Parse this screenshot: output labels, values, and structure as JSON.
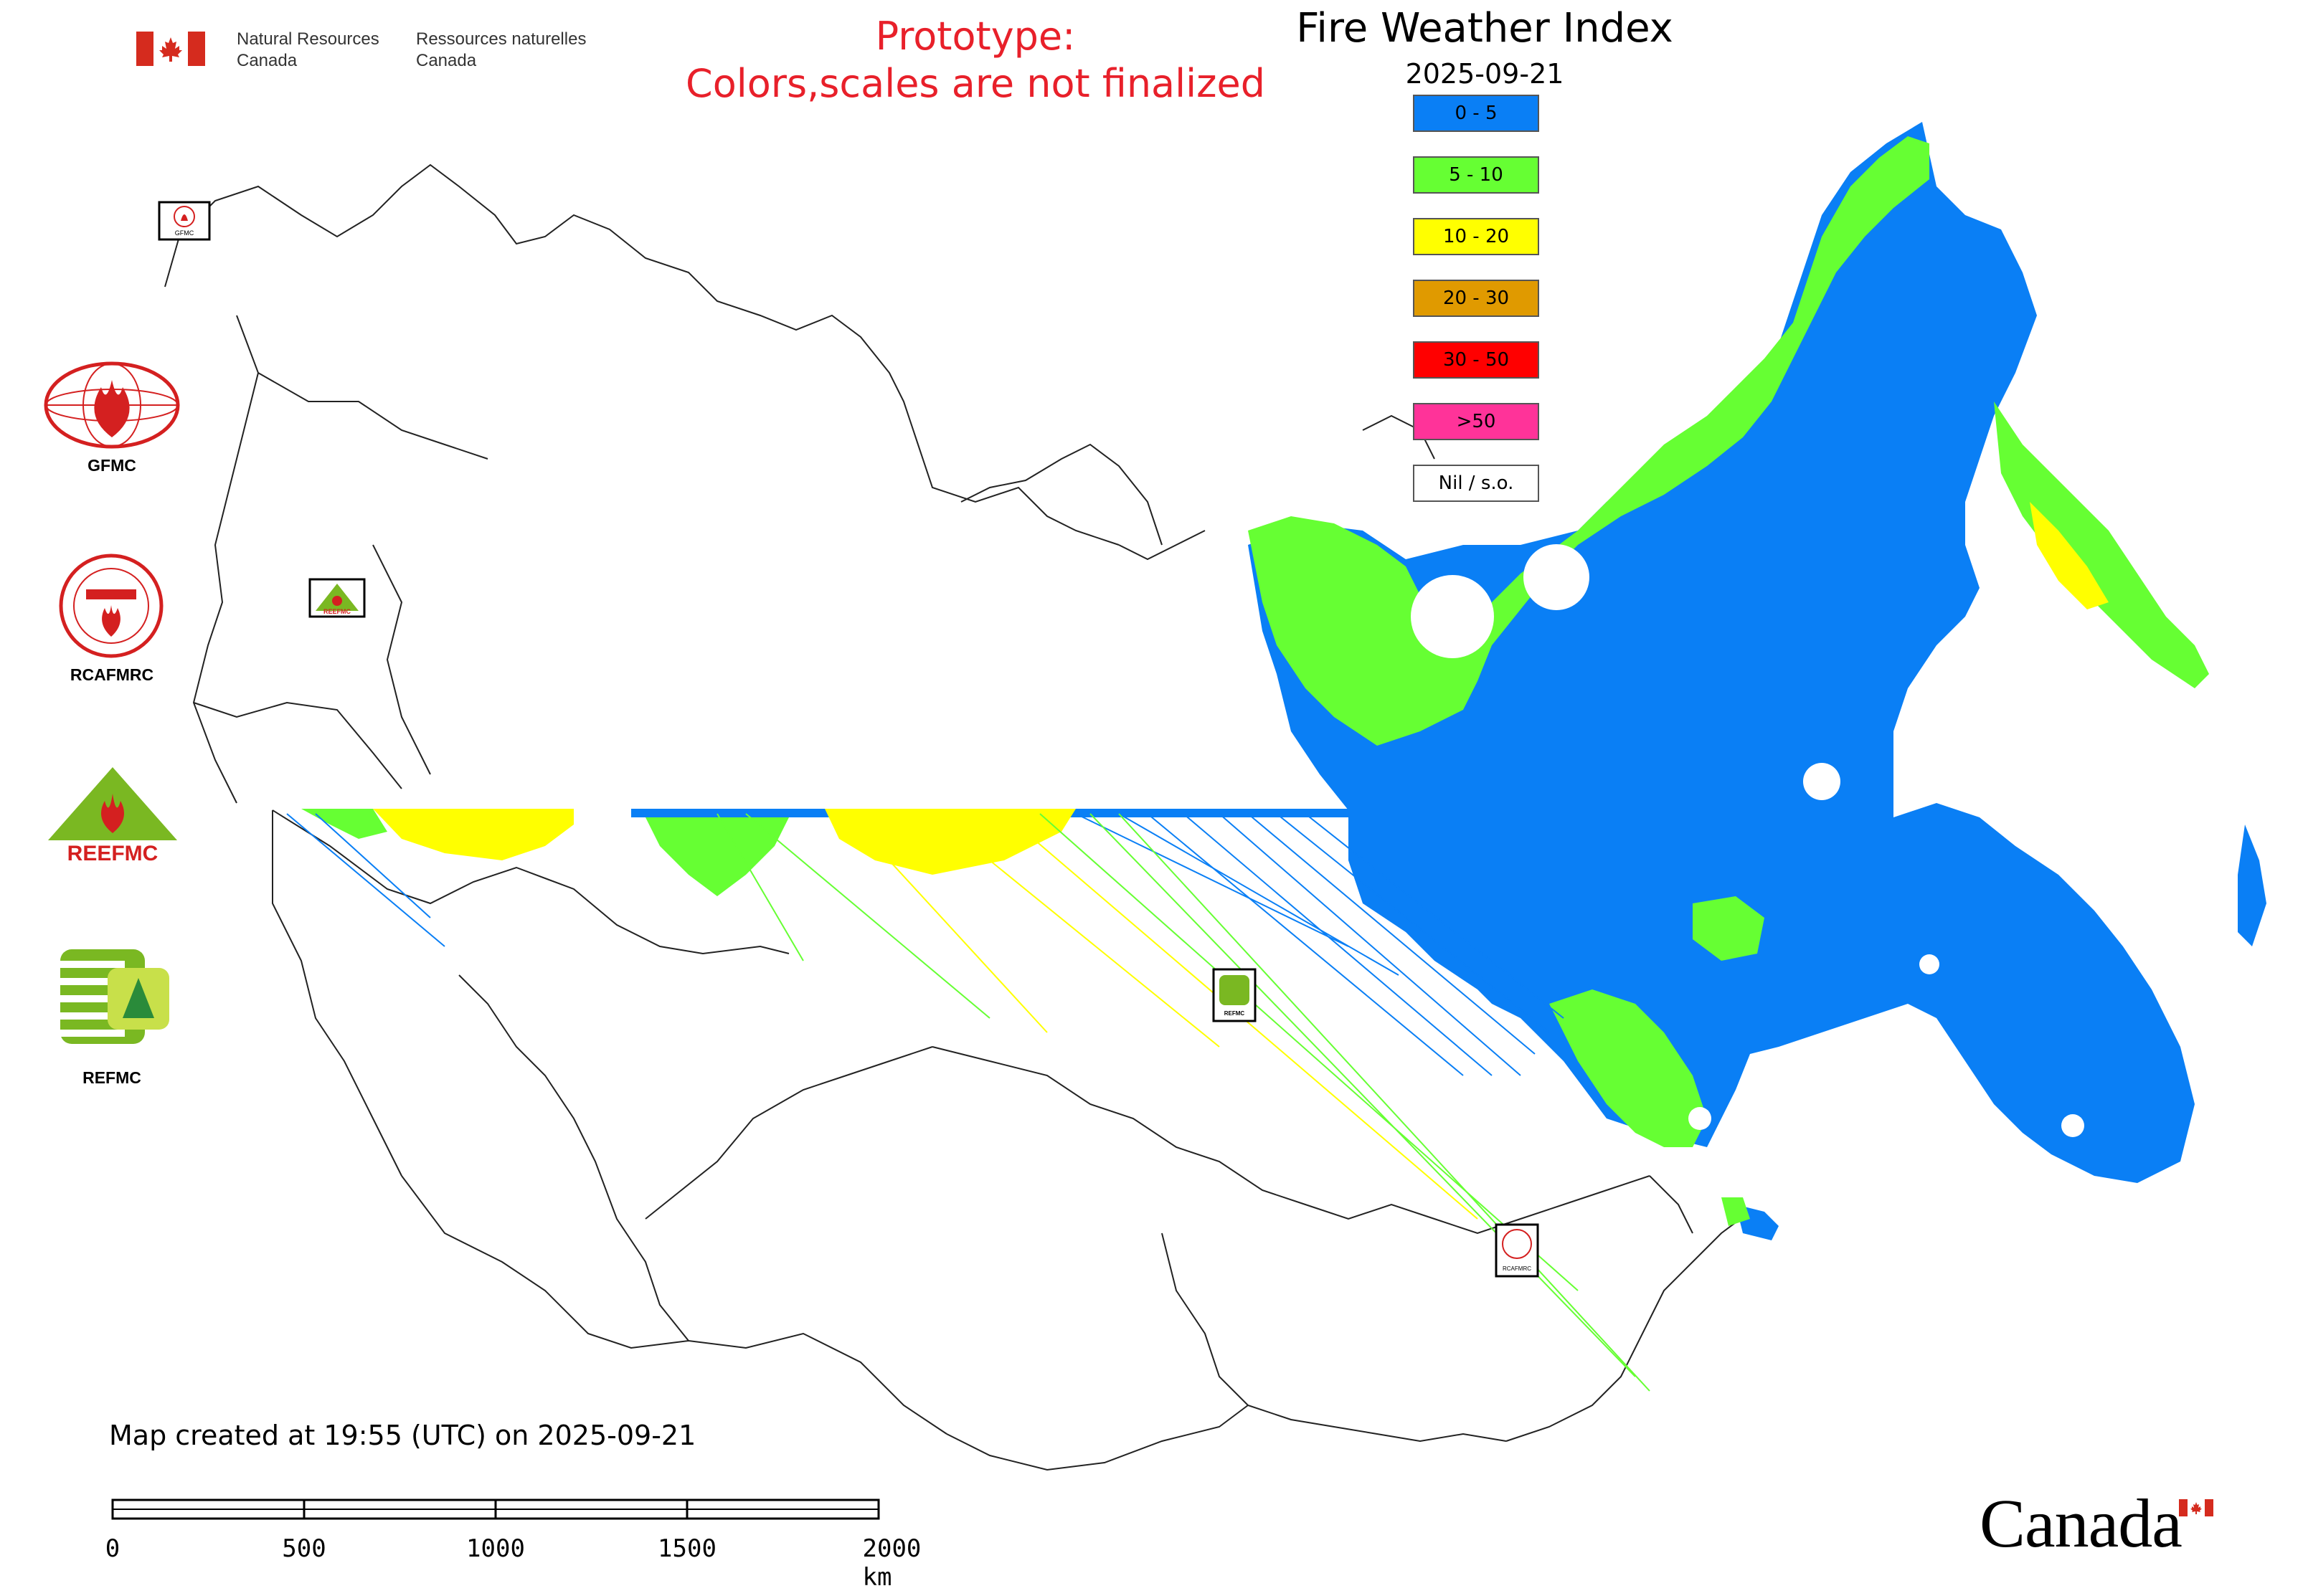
{
  "header": {
    "org_en_line1": "Natural Resources",
    "org_en_line2": "Canada",
    "org_fr_line1": "Ressources naturelles",
    "org_fr_line2": "Canada",
    "prototype_line1": "Prototype:",
    "prototype_line2": "Colors,scales are not finalized",
    "map_title": "Fire Weather Index",
    "map_date": "2025-09-21"
  },
  "legend": [
    {
      "label": "0 - 5",
      "color": "#0a7ff5"
    },
    {
      "label": "5 - 10",
      "color": "#66ff33"
    },
    {
      "label": "10 - 20",
      "color": "#ffff00"
    },
    {
      "label": "20 - 30",
      "color": "#e09a00"
    },
    {
      "label": "30 - 50",
      "color": "#ff0000"
    },
    {
      "label": ">50",
      "color": "#ff3399"
    },
    {
      "label": "Nil / s.o.",
      "color": "#ffffff"
    }
  ],
  "side_logos": [
    {
      "label": "GFMC",
      "icon": "gfmc-logo-icon"
    },
    {
      "label": "RCAFMRC",
      "icon": "rcafmrc-logo-icon"
    },
    {
      "label": "REEFMC",
      "icon": "reefmc-logo-icon"
    },
    {
      "label": "REFMC",
      "icon": "refmc-logo-icon"
    }
  ],
  "map_logo_marks": {
    "gfmc_small": "GFMC",
    "reefmc_small": "REEFMC",
    "refmc_small": "REFMC",
    "rcafmrc_small": "RCAFMRC"
  },
  "footer": {
    "map_created": "Map created at 19:55 (UTC) on 2025-09-21",
    "scale_labels": [
      "0",
      "500",
      "1000",
      "1500",
      "2000 km"
    ],
    "canada_wordmark": "Canada"
  },
  "colors": {
    "blue": "#0a7ff5",
    "green": "#66ff33",
    "yellow": "#ffff00",
    "prototype_red": "#e8202a"
  }
}
